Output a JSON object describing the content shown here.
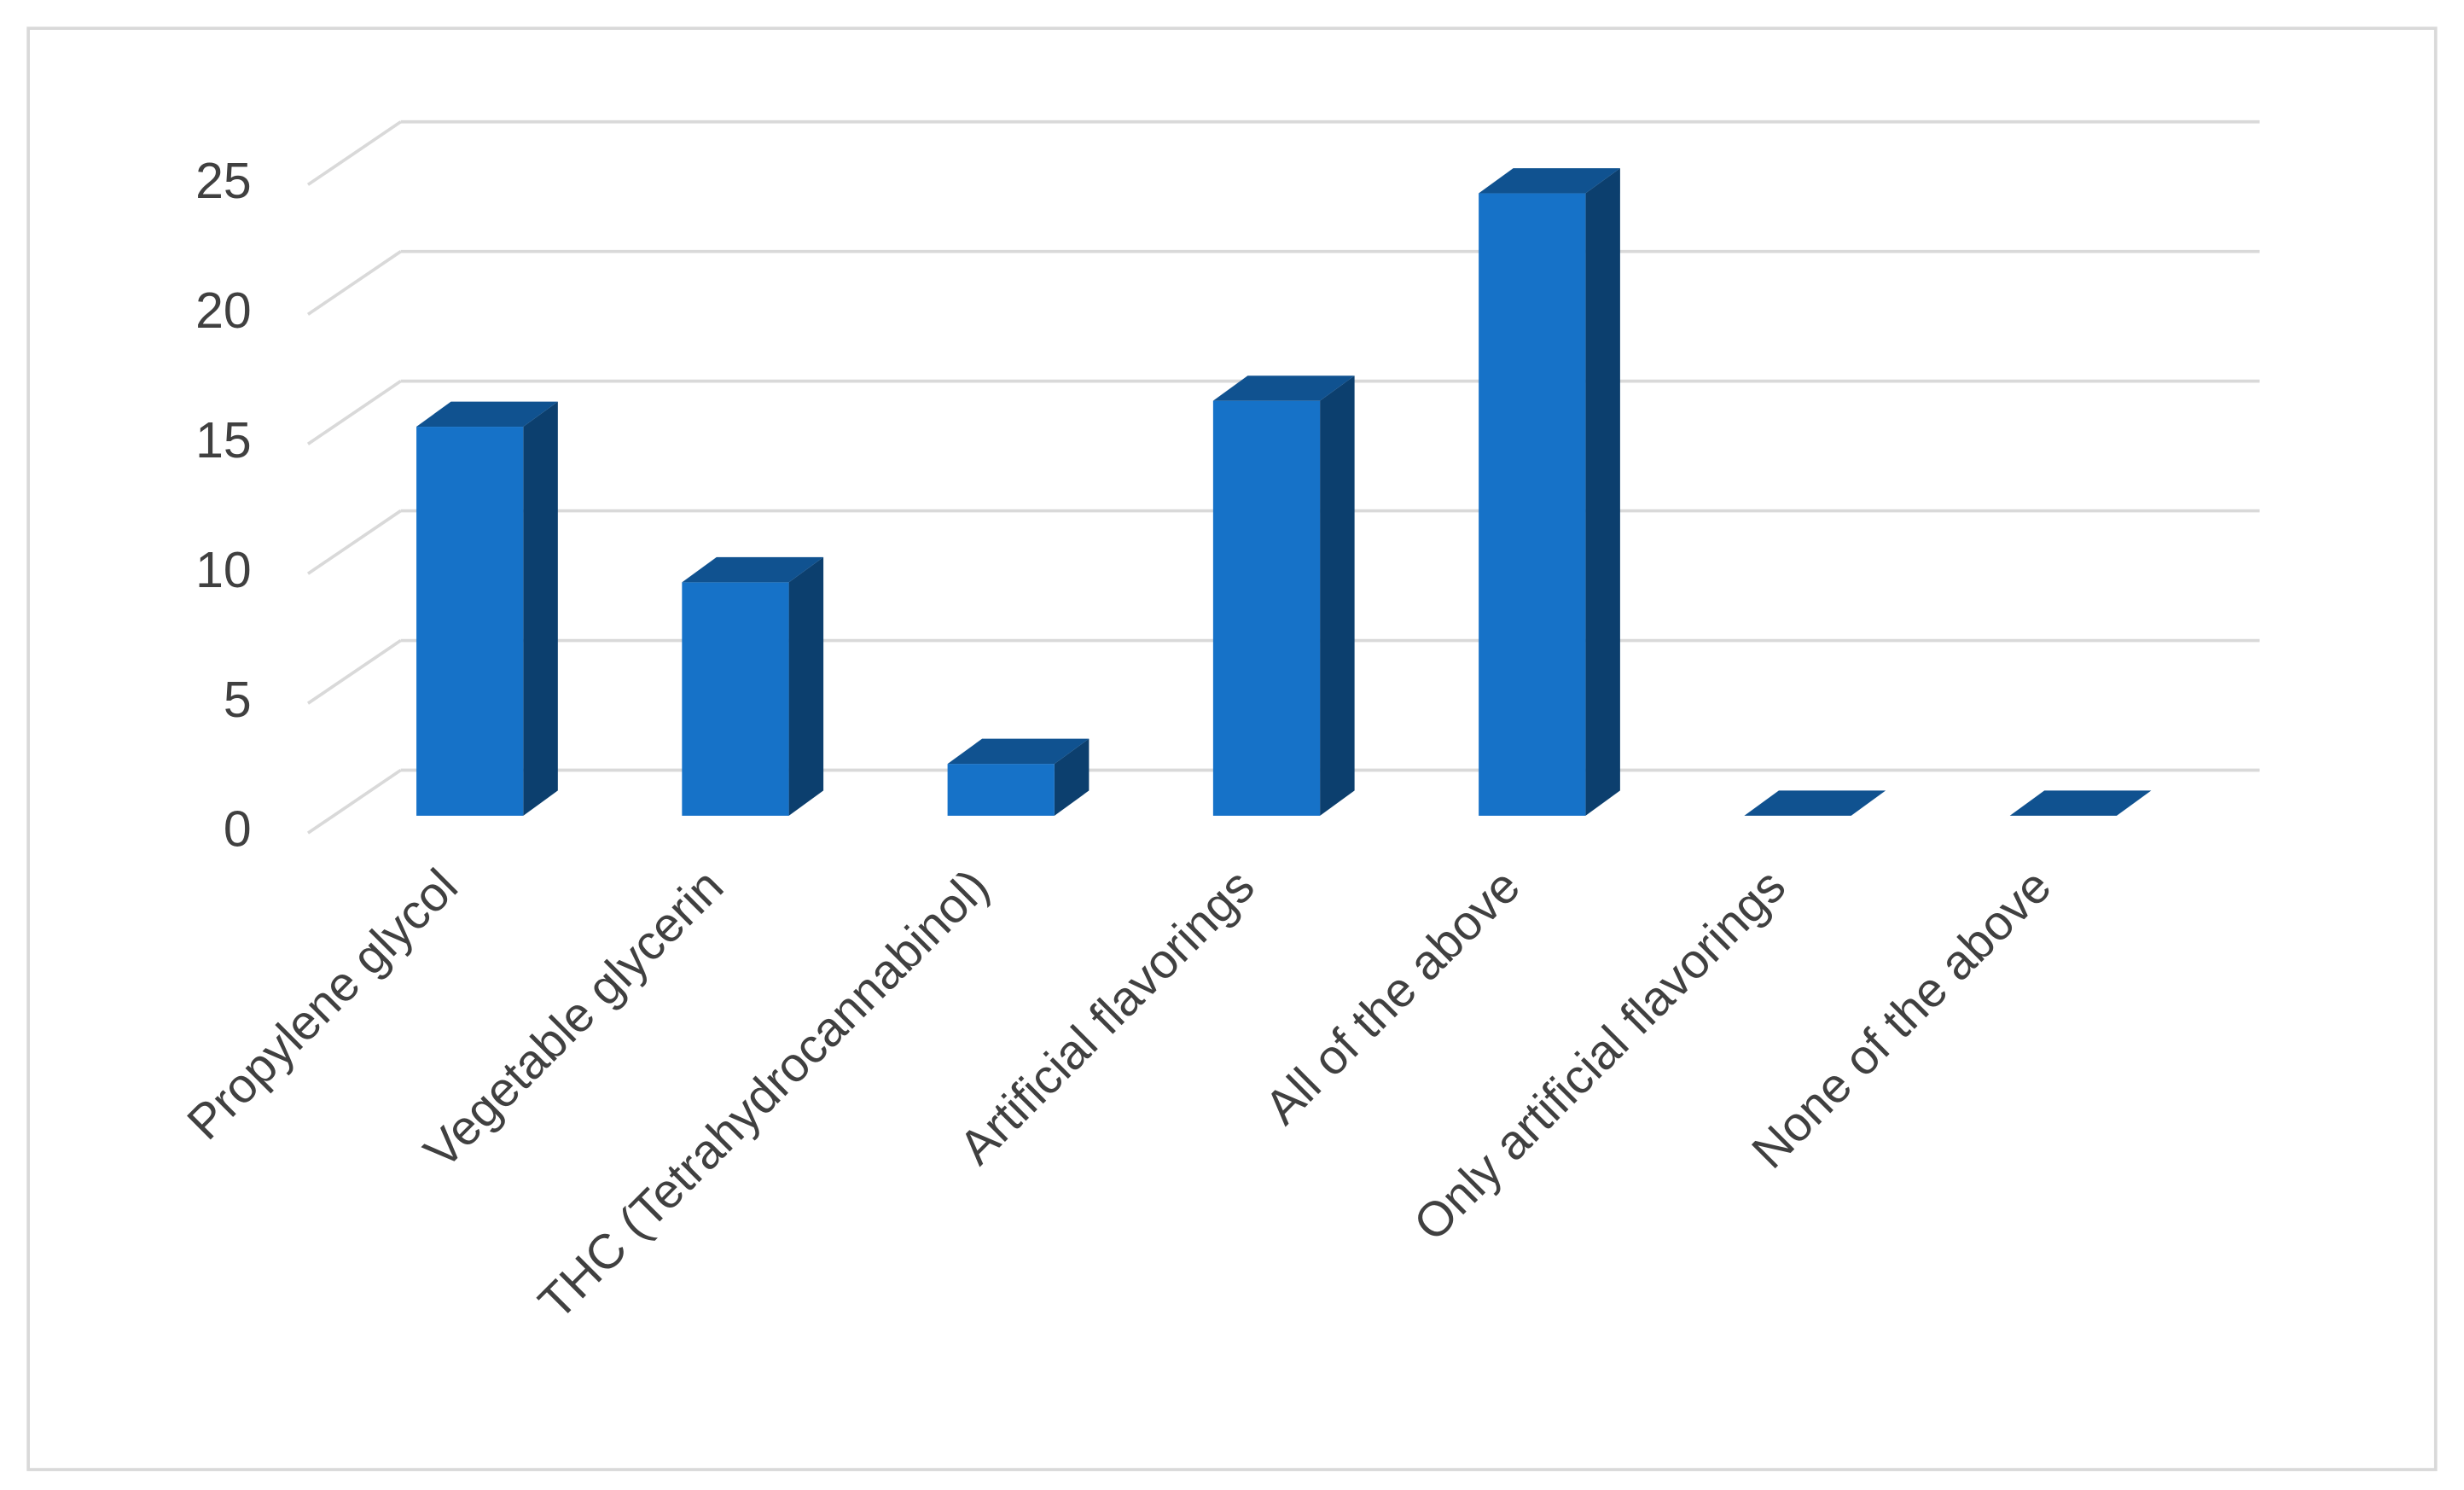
{
  "chart_data": {
    "type": "bar3d",
    "categories": [
      "Propylene glycol",
      "Vegetable glycerin",
      "THC (Tetrahydrocannabinol)",
      "Artificial flavorings",
      "All of the above",
      "Only artificial flavorings",
      "None of the above"
    ],
    "values": [
      15,
      9,
      2,
      16,
      24,
      0,
      0
    ],
    "color": "#1672c8",
    "ylim": [
      0,
      25
    ],
    "yticks": [
      0,
      5,
      10,
      15,
      20,
      25
    ],
    "grid": true
  }
}
